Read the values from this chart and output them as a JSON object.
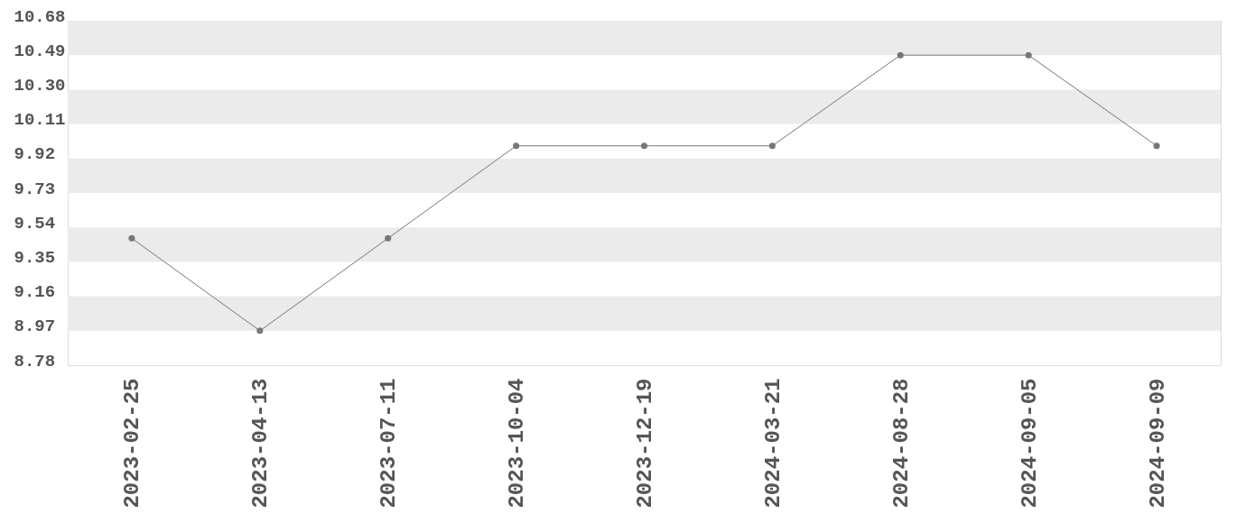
{
  "chart_data": {
    "type": "line",
    "categories": [
      "2023-02-25",
      "2023-04-13",
      "2023-07-11",
      "2023-10-04",
      "2023-12-19",
      "2024-03-21",
      "2024-08-28",
      "2024-09-05",
      "2024-09-09"
    ],
    "series": [
      {
        "color": "#777777",
        "values": [
          9.48,
          8.97,
          9.48,
          9.99,
          9.99,
          9.99,
          10.49,
          10.49,
          9.99
        ]
      }
    ],
    "ylim": [
      8.78,
      10.68
    ],
    "yticks": [
      8.78,
      8.97,
      9.16,
      9.35,
      9.54,
      9.73,
      9.92,
      10.11,
      {
        "value": 10.3,
        "label": "10.30"
      },
      10.49,
      10.68
    ],
    "bands": [
      {
        "axis": "y",
        "from": 10.49,
        "to": 10.68,
        "color": "#ebebeb"
      },
      {
        "axis": "y",
        "from": 10.11,
        "to": 10.3,
        "color": "#ebebeb"
      },
      {
        "axis": "y",
        "from": 9.73,
        "to": 9.92,
        "color": "#ebebeb"
      },
      {
        "axis": "y",
        "from": 9.35,
        "to": 9.54,
        "color": "#ebebeb"
      },
      {
        "axis": "y",
        "from": 8.97,
        "to": 9.16,
        "color": "#ebebeb"
      }
    ],
    "marker": "circle",
    "line_style": "solid"
  }
}
